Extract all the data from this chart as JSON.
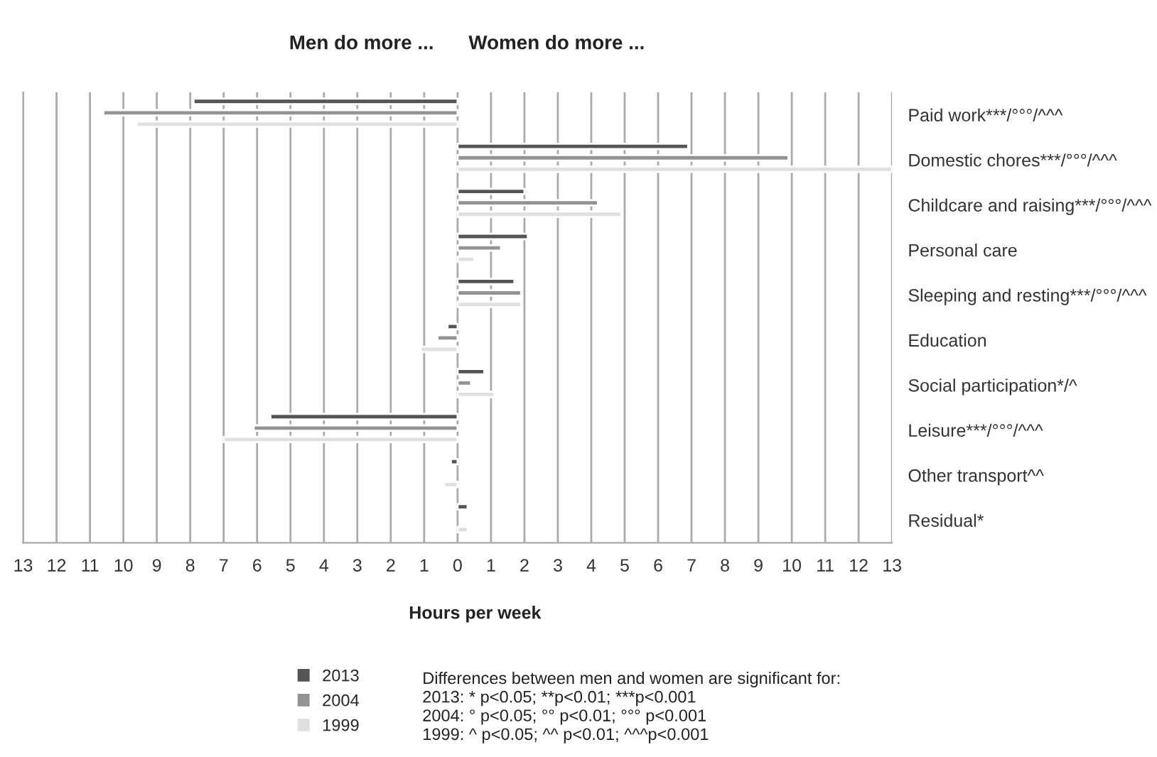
{
  "chart_data": {
    "type": "bar",
    "orientation": "horizontal",
    "categories": [
      "Paid work***/°°°/^^^",
      "Domestic chores***/°°°/^^^",
      "Childcare and raising***/°°°/^^^",
      "Personal care",
      "Sleeping and resting***/°°°/^^^",
      "Education",
      "Social participation*/^",
      "Leisure***/°°°/^^^",
      "Other transport^^",
      "Residual*"
    ],
    "series": [
      {
        "name": "2013",
        "color": "#555555",
        "values": [
          -7.9,
          6.9,
          2.0,
          2.1,
          1.7,
          -0.3,
          0.8,
          -5.6,
          -0.2,
          0.3
        ]
      },
      {
        "name": "2004",
        "color": "#939393",
        "values": [
          -10.6,
          9.9,
          4.2,
          1.3,
          1.9,
          -0.6,
          0.4,
          -6.1,
          null,
          null
        ]
      },
      {
        "name": "1999",
        "color": "#e0e0e0",
        "values": [
          -9.6,
          13.0,
          4.9,
          0.5,
          1.9,
          -1.1,
          1.1,
          -7.0,
          -0.4,
          0.3
        ]
      }
    ],
    "xlabel": "Hours per week",
    "xlim": [
      -13,
      13
    ],
    "xticks": [
      {
        "value": -13,
        "label": "13"
      },
      {
        "value": -12,
        "label": "12"
      },
      {
        "value": -11,
        "label": "11"
      },
      {
        "value": -10,
        "label": "10"
      },
      {
        "value": -9,
        "label": "9"
      },
      {
        "value": -8,
        "label": "8"
      },
      {
        "value": -7,
        "label": "7"
      },
      {
        "value": -6,
        "label": "6"
      },
      {
        "value": -5,
        "label": "5"
      },
      {
        "value": -4,
        "label": "4"
      },
      {
        "value": -3,
        "label": "3"
      },
      {
        "value": -2,
        "label": "2"
      },
      {
        "value": -1,
        "label": "1"
      },
      0,
      1,
      2,
      3,
      4,
      5,
      6,
      7,
      8,
      9,
      10,
      11,
      12,
      13
    ],
    "grid": "x",
    "legend": "bottom",
    "annotations": [
      "Men do more ...",
      "Women do more ...",
      "Differences between men and women are significant for:\n2013: * p<0.05; **p<0.01; ***p<0.001\n2004: ° p<0.05; °° p<0.01; °°° p<0.001\n1999: ^ p<0.05; ^^ p<0.01; ^^^p<0.001"
    ]
  }
}
